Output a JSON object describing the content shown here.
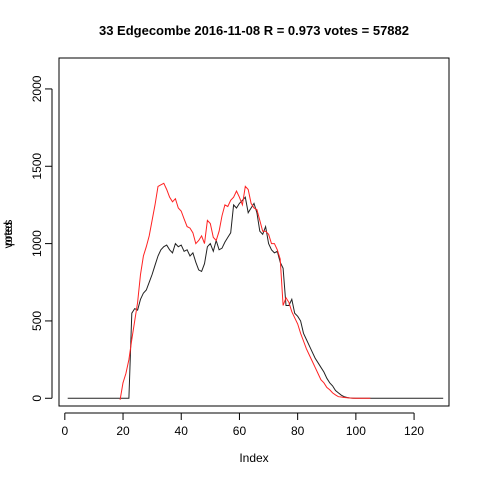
{
  "chart_data": {
    "type": "line",
    "title": "33 Edgecombe 2016-11-08 R = 0.973 votes = 57882",
    "xlabel": "Index",
    "ylabel_overlap": [
      "votes",
      "pred"
    ],
    "xlim": [
      -2,
      132
    ],
    "ylim": [
      -50,
      2200
    ],
    "xticks": [
      0,
      20,
      40,
      60,
      80,
      100,
      120
    ],
    "yticks": [
      0,
      500,
      1000,
      1500,
      2000
    ],
    "grid": false,
    "legend": "none",
    "colors": {
      "votes": "#222222",
      "pred": "#ff2222"
    },
    "series": [
      {
        "key": "votes",
        "x": [
          1,
          2,
          3,
          4,
          5,
          6,
          7,
          8,
          9,
          10,
          11,
          12,
          13,
          14,
          15,
          16,
          17,
          18,
          19,
          20,
          21,
          22,
          23,
          24,
          25,
          26,
          27,
          28,
          29,
          30,
          31,
          32,
          33,
          34,
          35,
          36,
          37,
          38,
          39,
          40,
          41,
          42,
          43,
          44,
          45,
          46,
          47,
          48,
          49,
          50,
          51,
          52,
          53,
          54,
          55,
          56,
          57,
          58,
          59,
          60,
          61,
          62,
          63,
          64,
          65,
          66,
          67,
          68,
          69,
          70,
          71,
          72,
          73,
          74,
          75,
          76,
          77,
          78,
          79,
          80,
          81,
          82,
          83,
          84,
          85,
          86,
          87,
          88,
          89,
          90,
          91,
          92,
          93,
          94,
          95,
          96,
          97,
          98,
          99,
          100,
          101,
          102,
          103,
          104,
          105,
          106,
          107,
          108,
          109,
          110,
          111,
          112,
          113,
          114,
          115,
          116,
          117,
          118,
          119,
          120,
          121,
          122,
          123,
          124,
          125,
          126,
          127,
          128,
          129,
          130
        ],
        "y": [
          0,
          0,
          0,
          0,
          0,
          0,
          0,
          0,
          0,
          0,
          0,
          0,
          0,
          0,
          0,
          0,
          0,
          0,
          0,
          0,
          0,
          0,
          550,
          580,
          570,
          640,
          680,
          700,
          750,
          800,
          860,
          920,
          960,
          980,
          990,
          960,
          940,
          1000,
          980,
          990,
          950,
          960,
          920,
          940,
          880,
          830,
          820,
          870,
          980,
          1000,
          950,
          1020,
          960,
          970,
          1010,
          1040,
          1070,
          1250,
          1230,
          1260,
          1280,
          1300,
          1200,
          1230,
          1260,
          1200,
          1080,
          1060,
          1110,
          1000,
          960,
          940,
          950,
          880,
          840,
          600,
          600,
          640,
          550,
          530,
          500,
          420,
          380,
          340,
          300,
          260,
          230,
          200,
          170,
          130,
          100,
          80,
          50,
          35,
          20,
          10,
          5,
          2,
          0,
          0,
          0,
          0,
          0,
          0,
          0,
          0,
          0,
          0,
          0,
          0,
          0,
          0,
          0,
          0,
          0,
          0,
          0,
          0,
          0,
          0,
          0,
          0,
          0,
          0,
          0,
          0,
          0,
          0,
          0,
          0
        ]
      },
      {
        "key": "pred",
        "x": [
          19,
          20,
          21,
          22,
          23,
          24,
          25,
          26,
          27,
          28,
          29,
          30,
          31,
          32,
          33,
          34,
          35,
          36,
          37,
          38,
          39,
          40,
          41,
          42,
          43,
          44,
          45,
          46,
          47,
          48,
          49,
          50,
          51,
          52,
          53,
          54,
          55,
          56,
          57,
          58,
          59,
          60,
          61,
          62,
          63,
          64,
          65,
          66,
          67,
          68,
          69,
          70,
          71,
          72,
          73,
          74,
          75,
          76,
          77,
          78,
          79,
          80,
          81,
          82,
          83,
          84,
          85,
          86,
          87,
          88,
          89,
          90,
          91,
          92,
          93,
          94,
          95,
          96,
          97,
          98,
          99,
          100,
          101,
          102,
          103,
          104,
          105
        ],
        "y": [
          -10,
          100,
          160,
          250,
          380,
          500,
          620,
          800,
          920,
          980,
          1050,
          1150,
          1250,
          1370,
          1380,
          1390,
          1350,
          1300,
          1270,
          1290,
          1230,
          1210,
          1160,
          1110,
          1100,
          1070,
          1000,
          1020,
          1050,
          1000,
          1150,
          1130,
          1040,
          1020,
          1080,
          1180,
          1250,
          1240,
          1280,
          1300,
          1340,
          1300,
          1250,
          1370,
          1350,
          1260,
          1230,
          1220,
          1150,
          1080,
          1080,
          1060,
          1000,
          1000,
          960,
          900,
          600,
          650,
          620,
          560,
          520,
          480,
          420,
          370,
          320,
          280,
          240,
          200,
          160,
          120,
          100,
          70,
          55,
          35,
          22,
          10,
          8,
          5,
          3,
          2,
          1,
          0,
          0,
          0,
          0,
          0,
          0
        ]
      }
    ]
  }
}
